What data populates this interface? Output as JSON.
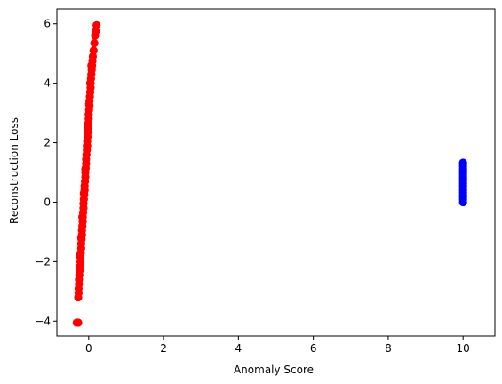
{
  "chart_data": {
    "type": "scatter",
    "title": "",
    "xlabel": "Anomaly Score",
    "ylabel": "Reconstruction Loss",
    "xlim": [
      -0.85,
      10.85
    ],
    "ylim": [
      -4.5,
      6.5
    ],
    "xticks": [
      0,
      2,
      4,
      6,
      8,
      10
    ],
    "yticks": [
      -4,
      -2,
      0,
      2,
      4,
      6
    ],
    "grid": false,
    "legend": "none",
    "series": [
      {
        "color": "#ff0000",
        "points": [
          [
            -0.32,
            -4.05
          ],
          [
            -0.28,
            -4.05
          ],
          [
            -0.28,
            -3.2
          ],
          [
            -0.27,
            -3.05
          ],
          [
            -0.27,
            -2.9
          ],
          [
            -0.26,
            -2.75
          ],
          [
            -0.26,
            -2.6
          ],
          [
            -0.25,
            -2.45
          ],
          [
            -0.24,
            -2.3
          ],
          [
            -0.23,
            -2.15
          ],
          [
            -0.22,
            -2.0
          ],
          [
            -0.22,
            -1.85
          ],
          [
            -0.21,
            -1.7
          ],
          [
            -0.2,
            -1.55
          ],
          [
            -0.2,
            -1.4
          ],
          [
            -0.19,
            -1.25
          ],
          [
            -0.18,
            -1.1
          ],
          [
            -0.18,
            -0.95
          ],
          [
            -0.17,
            -0.8
          ],
          [
            -0.16,
            -0.65
          ],
          [
            -0.16,
            -0.5
          ],
          [
            -0.15,
            -0.35
          ],
          [
            -0.14,
            -0.2
          ],
          [
            -0.14,
            -0.05
          ],
          [
            -0.13,
            0.1
          ],
          [
            -0.12,
            0.25
          ],
          [
            -0.11,
            0.4
          ],
          [
            -0.11,
            0.55
          ],
          [
            -0.1,
            0.7
          ],
          [
            -0.09,
            0.85
          ],
          [
            -0.09,
            1.0
          ],
          [
            -0.08,
            1.15
          ],
          [
            -0.07,
            1.3
          ],
          [
            -0.07,
            1.45
          ],
          [
            -0.06,
            1.6
          ],
          [
            -0.05,
            1.75
          ],
          [
            -0.04,
            1.9
          ],
          [
            -0.04,
            2.05
          ],
          [
            -0.03,
            2.2
          ],
          [
            -0.02,
            2.35
          ],
          [
            -0.02,
            2.5
          ],
          [
            -0.01,
            2.65
          ],
          [
            0.0,
            2.8
          ],
          [
            0.0,
            2.95
          ],
          [
            0.01,
            3.1
          ],
          [
            0.02,
            3.25
          ],
          [
            0.02,
            3.4
          ],
          [
            0.03,
            3.55
          ],
          [
            0.04,
            3.7
          ],
          [
            0.05,
            3.85
          ],
          [
            0.05,
            4.0
          ],
          [
            0.06,
            4.15
          ],
          [
            0.07,
            4.3
          ],
          [
            0.08,
            4.45
          ],
          [
            0.09,
            4.6
          ],
          [
            0.1,
            4.75
          ],
          [
            0.11,
            4.9
          ],
          [
            0.13,
            5.1
          ],
          [
            0.15,
            5.35
          ],
          [
            0.17,
            5.6
          ],
          [
            0.19,
            5.75
          ],
          [
            0.21,
            5.95
          ],
          [
            -0.24,
            -1.8
          ],
          [
            -0.2,
            -1.2
          ],
          [
            -0.17,
            -0.5
          ],
          [
            -0.13,
            0.3
          ],
          [
            -0.09,
            1.1
          ],
          [
            -0.05,
            1.9
          ],
          [
            -0.02,
            2.6
          ],
          [
            0.01,
            3.3
          ],
          [
            0.04,
            4.0
          ],
          [
            0.07,
            4.6
          ]
        ]
      },
      {
        "color": "#0000ff",
        "points": [
          [
            10.0,
            0.0
          ],
          [
            10.0,
            0.08
          ],
          [
            10.0,
            0.16
          ],
          [
            10.0,
            0.24
          ],
          [
            10.0,
            0.32
          ],
          [
            10.0,
            0.4
          ],
          [
            10.0,
            0.48
          ],
          [
            10.0,
            0.56
          ],
          [
            10.0,
            0.64
          ],
          [
            10.0,
            0.72
          ],
          [
            10.0,
            0.8
          ],
          [
            10.0,
            0.88
          ],
          [
            10.0,
            0.96
          ],
          [
            10.0,
            1.04
          ],
          [
            10.0,
            1.12
          ],
          [
            10.0,
            1.2
          ],
          [
            10.0,
            1.28
          ],
          [
            10.0,
            1.33
          ]
        ]
      }
    ]
  }
}
